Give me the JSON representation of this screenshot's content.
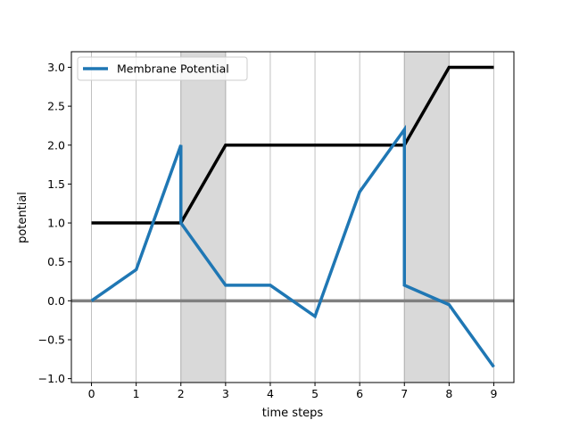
{
  "chart_data": {
    "type": "line",
    "title": "",
    "xlabel": "time steps",
    "ylabel": "potential",
    "xlim": [
      -0.45,
      9.45
    ],
    "ylim": [
      -1.05,
      3.2
    ],
    "x_ticks": [
      0,
      1,
      2,
      3,
      4,
      5,
      6,
      7,
      8,
      9
    ],
    "x_tick_labels": [
      "0",
      "1",
      "2",
      "3",
      "4",
      "5",
      "6",
      "7",
      "8",
      "9"
    ],
    "y_ticks": [
      -1.0,
      -0.5,
      0.0,
      0.5,
      1.0,
      1.5,
      2.0,
      2.5,
      3.0
    ],
    "y_tick_labels": [
      "−1.0",
      "−0.5",
      "0.0",
      "0.5",
      "1.0",
      "1.5",
      "2.0",
      "2.5",
      "3.0"
    ],
    "grid": "vertical lines at x ticks",
    "legend": {
      "placement": "top-left",
      "entries": [
        "Membrane Potential"
      ]
    },
    "shaded_spans": [
      {
        "x": [
          2,
          3
        ],
        "color": "#d9d9d9"
      },
      {
        "x": [
          7,
          8
        ],
        "color": "#d9d9d9"
      }
    ],
    "baseline": {
      "y": 0.0,
      "color": "#808080"
    },
    "series": [
      {
        "name": "Membrane Potential",
        "color": "#1f77b4",
        "x": [
          0,
          1,
          2,
          2,
          3,
          4,
          5,
          6,
          7,
          7,
          8,
          9
        ],
        "y": [
          0.0,
          0.4,
          2.0,
          1.0,
          0.2,
          0.2,
          -0.2,
          1.4,
          2.2,
          0.2,
          -0.05,
          -0.85
        ]
      },
      {
        "color": "#000000",
        "x": [
          0,
          1,
          2,
          3,
          4,
          5,
          6,
          7,
          8,
          9
        ],
        "y": [
          1.0,
          1.0,
          1.0,
          2.0,
          2.0,
          2.0,
          2.0,
          2.0,
          3.0,
          3.0
        ]
      }
    ]
  }
}
